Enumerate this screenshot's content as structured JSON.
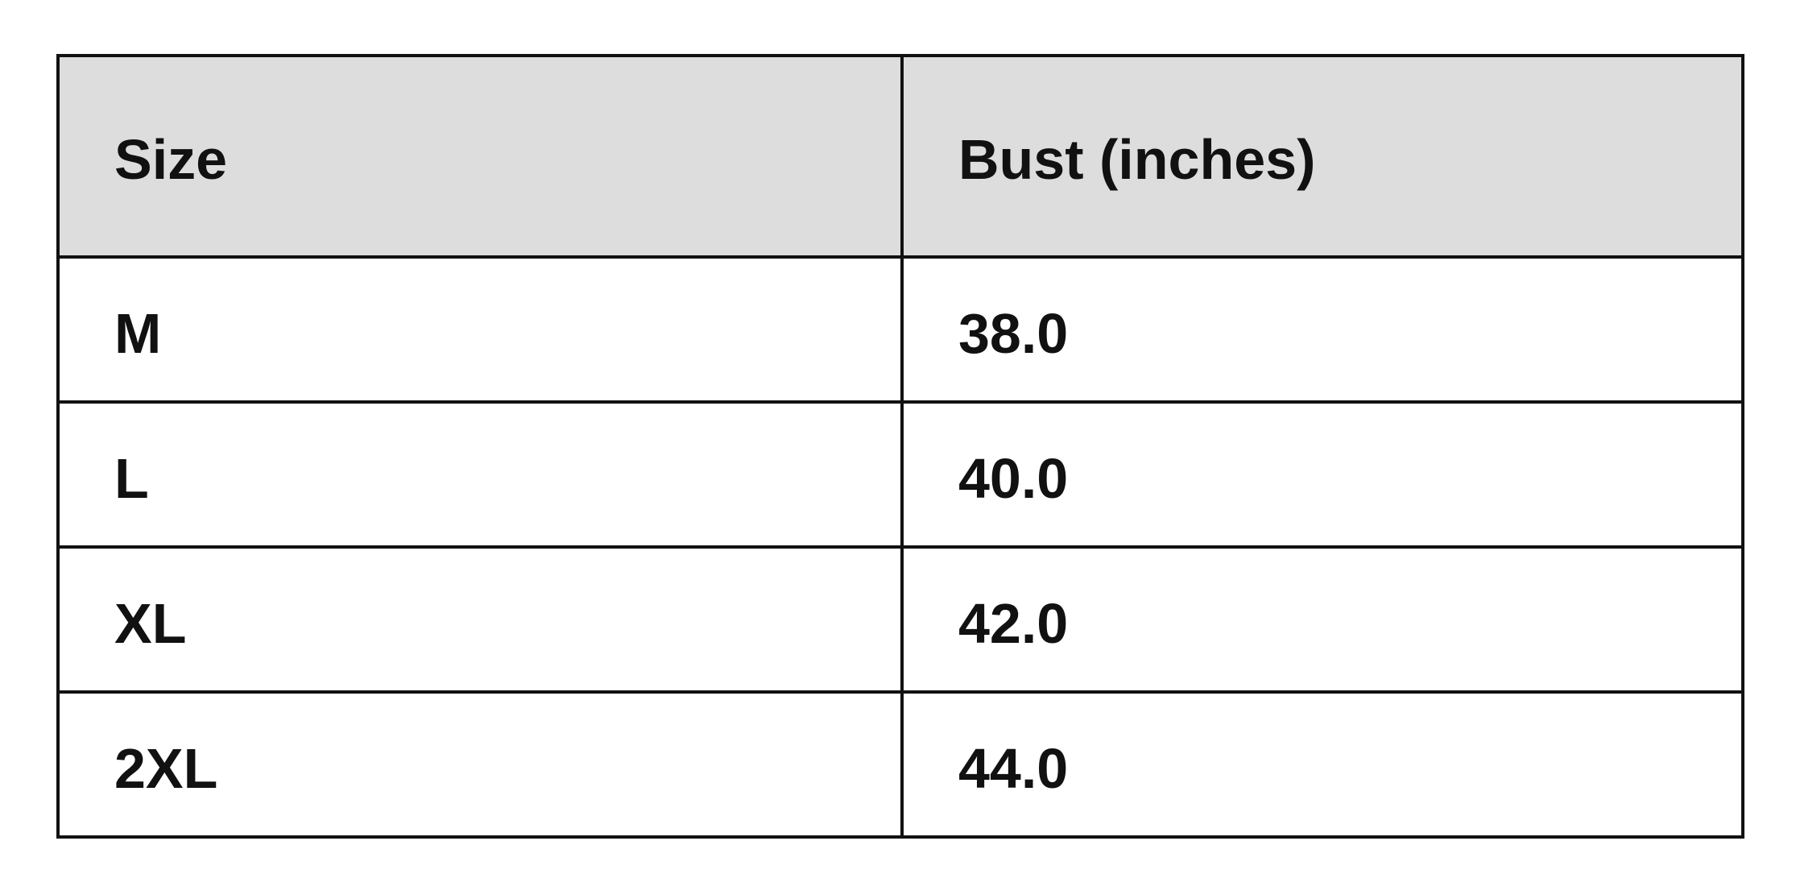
{
  "table": {
    "headers": [
      "Size",
      "Bust (inches)"
    ],
    "rows": [
      [
        "M",
        "38.0"
      ],
      [
        "L",
        "40.0"
      ],
      [
        "XL",
        "42.0"
      ],
      [
        "2XL",
        "44.0"
      ]
    ]
  },
  "colors": {
    "header_background": "#dddddd",
    "border": "#111111"
  }
}
